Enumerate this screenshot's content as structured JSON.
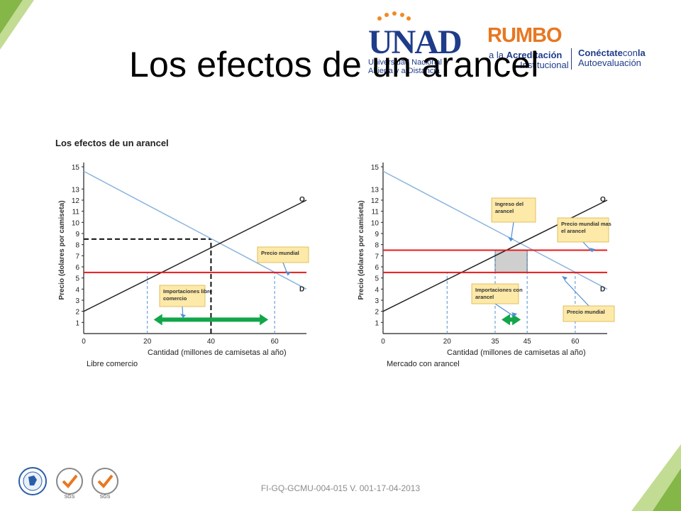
{
  "slide": {
    "title": "Los efectos de un arancel",
    "footer": "FI-GQ-GCMU-004-015  V. 001-17-04-2013"
  },
  "logos": {
    "unad_word": "UNAD",
    "unad_line1": "Universidad Nacional",
    "unad_line2": "Abierta y a Distancia",
    "rumbo_word": "RUMBO",
    "rumbo_line1_prefix": "a la ",
    "rumbo_line1_bold": "Acreditación",
    "rumbo_line2": "Institucional",
    "conect_bold": "Conéctate",
    "conect_rest": "con",
    "conect_bold2": "la",
    "conect_line2": "Autoevaluación"
  },
  "figure_title": "Los efectos de un arancel",
  "colors": {
    "demand": "#8ab4de",
    "supply": "#222222",
    "world_price": "#e8191c",
    "imports_arrow": "#12a64a",
    "revenue_fill": "#cfcfcf",
    "callout_fill": "#fde9a8",
    "callout_border": "#d9b44a",
    "guide": "#4f8fd6"
  },
  "chart_data": [
    {
      "type": "line",
      "subtitle": "Libre comercio",
      "xlabel": "Cantidad (millones de camisetas al año)",
      "ylabel": "Precio (dolares por camiseta)",
      "xlim": [
        0,
        70
      ],
      "ylim": [
        0,
        15
      ],
      "x_ticks": [
        0,
        20,
        40,
        60
      ],
      "y_ticks": [
        1,
        2,
        3,
        4,
        5,
        6,
        7,
        8,
        9,
        10,
        11,
        12,
        13,
        15
      ],
      "series": [
        {
          "name": "D",
          "x": [
            0,
            70
          ],
          "y": [
            14.6,
            4.0
          ]
        },
        {
          "name": "O",
          "x": [
            0,
            70
          ],
          "y": [
            2.0,
            12.0
          ]
        },
        {
          "name": "Precio mundial",
          "x": [
            0,
            70
          ],
          "y": [
            5.5,
            5.5
          ]
        }
      ],
      "reference_lines": [
        {
          "kind": "dashed-black",
          "x": [
            0,
            40
          ],
          "y": [
            8.5,
            8.5
          ]
        },
        {
          "kind": "dashed-black",
          "x": [
            40,
            40
          ],
          "y": [
            0,
            8.5
          ]
        },
        {
          "kind": "dashed-blue",
          "x": [
            20,
            20
          ],
          "y": [
            0,
            5.5
          ]
        },
        {
          "kind": "dashed-blue",
          "x": [
            60,
            60
          ],
          "y": [
            0,
            5.5
          ]
        }
      ],
      "imports_arrow": {
        "x_from": 22,
        "x_to": 58,
        "y": 1.0
      },
      "callouts": [
        {
          "text": "Precio mundial",
          "anchor_x": 57,
          "anchor_y": 5.6
        },
        {
          "text": "Importaciones libre comercio",
          "anchor_x": 27,
          "anchor_y": 2.3
        }
      ],
      "curve_labels": [
        "O",
        "D"
      ]
    },
    {
      "type": "line",
      "subtitle": "Mercado con arancel",
      "xlabel": "Cantidad (millones de camisetas al año)",
      "ylabel": "Precio (dolares por camiseta)",
      "xlim": [
        0,
        70
      ],
      "ylim": [
        0,
        15
      ],
      "x_ticks": [
        0,
        20,
        35,
        45,
        60
      ],
      "y_ticks": [
        1,
        2,
        3,
        4,
        5,
        6,
        7,
        8,
        9,
        10,
        11,
        12,
        13,
        15
      ],
      "series": [
        {
          "name": "D",
          "x": [
            0,
            70
          ],
          "y": [
            14.6,
            4.0
          ]
        },
        {
          "name": "O",
          "x": [
            0,
            70
          ],
          "y": [
            2.0,
            12.0
          ]
        },
        {
          "name": "Precio mundial",
          "x": [
            0,
            70
          ],
          "y": [
            5.5,
            5.5
          ]
        },
        {
          "name": "Precio mundial mas el arancel",
          "x": [
            0,
            70
          ],
          "y": [
            7.5,
            7.5
          ]
        }
      ],
      "reference_lines": [
        {
          "kind": "dashed-blue",
          "x": [
            20,
            20
          ],
          "y": [
            0,
            5.5
          ]
        },
        {
          "kind": "dashed-blue",
          "x": [
            35,
            35
          ],
          "y": [
            0,
            7.5
          ]
        },
        {
          "kind": "dashed-blue",
          "x": [
            45,
            45
          ],
          "y": [
            0,
            7.5
          ]
        },
        {
          "kind": "dashed-blue",
          "x": [
            60,
            60
          ],
          "y": [
            0,
            5.5
          ]
        }
      ],
      "revenue_rect": {
        "x": [
          35,
          45
        ],
        "y": [
          5.5,
          7.5
        ]
      },
      "imports_arrow": {
        "x_from": 37,
        "x_to": 43,
        "y": 1.0
      },
      "callouts": [
        {
          "text": "Ingreso del arancel",
          "anchor_x": 40,
          "anchor_y": 7.6
        },
        {
          "text": "Precio mundial mas el arancel",
          "anchor_x": 66,
          "anchor_y": 7.7
        },
        {
          "text": "Importaciones con arancel",
          "anchor_x": 42,
          "anchor_y": 2.3
        },
        {
          "text": "Precio mundial",
          "anchor_x": 57,
          "anchor_y": 5.6
        }
      ],
      "curve_labels": [
        "O",
        "D"
      ]
    }
  ]
}
